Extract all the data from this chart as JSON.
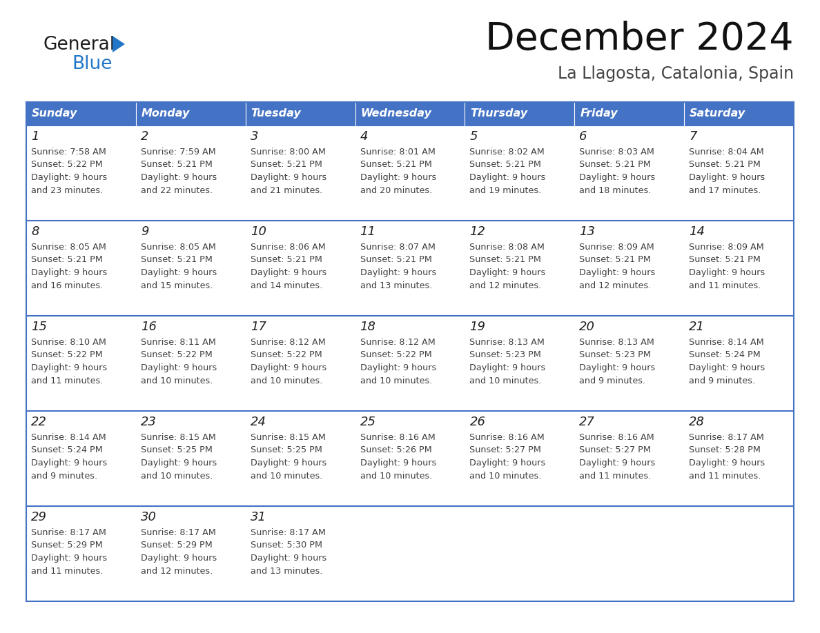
{
  "title": "December 2024",
  "subtitle": "La Llagosta, Catalonia, Spain",
  "header_color": "#4472C4",
  "header_text_color": "#FFFFFF",
  "days_of_week": [
    "Sunday",
    "Monday",
    "Tuesday",
    "Wednesday",
    "Thursday",
    "Friday",
    "Saturday"
  ],
  "border_color": "#4472C4",
  "text_color": "#404040",
  "calendar": [
    [
      {
        "day": 1,
        "sunrise": "7:58 AM",
        "sunset": "5:22 PM",
        "daylight_hours": 9,
        "daylight_minutes": 23
      },
      {
        "day": 2,
        "sunrise": "7:59 AM",
        "sunset": "5:21 PM",
        "daylight_hours": 9,
        "daylight_minutes": 22
      },
      {
        "day": 3,
        "sunrise": "8:00 AM",
        "sunset": "5:21 PM",
        "daylight_hours": 9,
        "daylight_minutes": 21
      },
      {
        "day": 4,
        "sunrise": "8:01 AM",
        "sunset": "5:21 PM",
        "daylight_hours": 9,
        "daylight_minutes": 20
      },
      {
        "day": 5,
        "sunrise": "8:02 AM",
        "sunset": "5:21 PM",
        "daylight_hours": 9,
        "daylight_minutes": 19
      },
      {
        "day": 6,
        "sunrise": "8:03 AM",
        "sunset": "5:21 PM",
        "daylight_hours": 9,
        "daylight_minutes": 18
      },
      {
        "day": 7,
        "sunrise": "8:04 AM",
        "sunset": "5:21 PM",
        "daylight_hours": 9,
        "daylight_minutes": 17
      }
    ],
    [
      {
        "day": 8,
        "sunrise": "8:05 AM",
        "sunset": "5:21 PM",
        "daylight_hours": 9,
        "daylight_minutes": 16
      },
      {
        "day": 9,
        "sunrise": "8:05 AM",
        "sunset": "5:21 PM",
        "daylight_hours": 9,
        "daylight_minutes": 15
      },
      {
        "day": 10,
        "sunrise": "8:06 AM",
        "sunset": "5:21 PM",
        "daylight_hours": 9,
        "daylight_minutes": 14
      },
      {
        "day": 11,
        "sunrise": "8:07 AM",
        "sunset": "5:21 PM",
        "daylight_hours": 9,
        "daylight_minutes": 13
      },
      {
        "day": 12,
        "sunrise": "8:08 AM",
        "sunset": "5:21 PM",
        "daylight_hours": 9,
        "daylight_minutes": 12
      },
      {
        "day": 13,
        "sunrise": "8:09 AM",
        "sunset": "5:21 PM",
        "daylight_hours": 9,
        "daylight_minutes": 12
      },
      {
        "day": 14,
        "sunrise": "8:09 AM",
        "sunset": "5:21 PM",
        "daylight_hours": 9,
        "daylight_minutes": 11
      }
    ],
    [
      {
        "day": 15,
        "sunrise": "8:10 AM",
        "sunset": "5:22 PM",
        "daylight_hours": 9,
        "daylight_minutes": 11
      },
      {
        "day": 16,
        "sunrise": "8:11 AM",
        "sunset": "5:22 PM",
        "daylight_hours": 9,
        "daylight_minutes": 10
      },
      {
        "day": 17,
        "sunrise": "8:12 AM",
        "sunset": "5:22 PM",
        "daylight_hours": 9,
        "daylight_minutes": 10
      },
      {
        "day": 18,
        "sunrise": "8:12 AM",
        "sunset": "5:22 PM",
        "daylight_hours": 9,
        "daylight_minutes": 10
      },
      {
        "day": 19,
        "sunrise": "8:13 AM",
        "sunset": "5:23 PM",
        "daylight_hours": 9,
        "daylight_minutes": 10
      },
      {
        "day": 20,
        "sunrise": "8:13 AM",
        "sunset": "5:23 PM",
        "daylight_hours": 9,
        "daylight_minutes": 9
      },
      {
        "day": 21,
        "sunrise": "8:14 AM",
        "sunset": "5:24 PM",
        "daylight_hours": 9,
        "daylight_minutes": 9
      }
    ],
    [
      {
        "day": 22,
        "sunrise": "8:14 AM",
        "sunset": "5:24 PM",
        "daylight_hours": 9,
        "daylight_minutes": 9
      },
      {
        "day": 23,
        "sunrise": "8:15 AM",
        "sunset": "5:25 PM",
        "daylight_hours": 9,
        "daylight_minutes": 10
      },
      {
        "day": 24,
        "sunrise": "8:15 AM",
        "sunset": "5:25 PM",
        "daylight_hours": 9,
        "daylight_minutes": 10
      },
      {
        "day": 25,
        "sunrise": "8:16 AM",
        "sunset": "5:26 PM",
        "daylight_hours": 9,
        "daylight_minutes": 10
      },
      {
        "day": 26,
        "sunrise": "8:16 AM",
        "sunset": "5:27 PM",
        "daylight_hours": 9,
        "daylight_minutes": 10
      },
      {
        "day": 27,
        "sunrise": "8:16 AM",
        "sunset": "5:27 PM",
        "daylight_hours": 9,
        "daylight_minutes": 11
      },
      {
        "day": 28,
        "sunrise": "8:17 AM",
        "sunset": "5:28 PM",
        "daylight_hours": 9,
        "daylight_minutes": 11
      }
    ],
    [
      {
        "day": 29,
        "sunrise": "8:17 AM",
        "sunset": "5:29 PM",
        "daylight_hours": 9,
        "daylight_minutes": 11
      },
      {
        "day": 30,
        "sunrise": "8:17 AM",
        "sunset": "5:29 PM",
        "daylight_hours": 9,
        "daylight_minutes": 12
      },
      {
        "day": 31,
        "sunrise": "8:17 AM",
        "sunset": "5:30 PM",
        "daylight_hours": 9,
        "daylight_minutes": 13
      },
      null,
      null,
      null,
      null
    ]
  ],
  "logo_general_color": "#1a1a1a",
  "logo_blue_color": "#2176C8",
  "logo_triangle_color": "#2176C8"
}
